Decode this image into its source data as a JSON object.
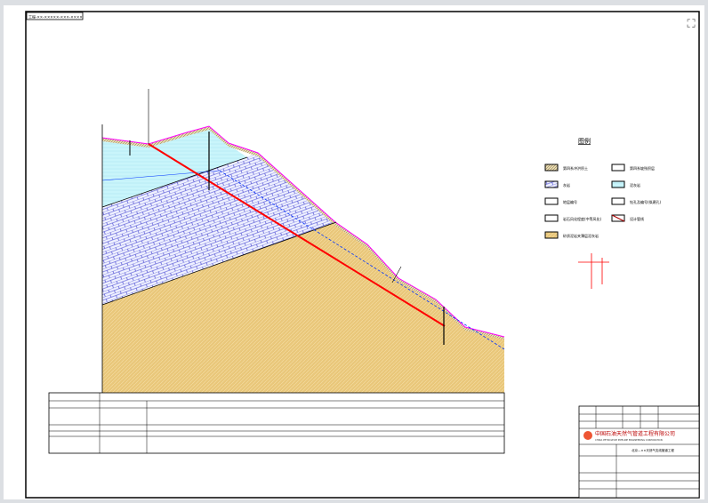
{
  "drawing_tag": "工程-××-×××××-×××-××××",
  "legend": {
    "title": "图例",
    "items": [
      {
        "label": "第四系冲洪积土",
        "swatch": "hatch-topsoil"
      },
      {
        "label": "第四系坡残积层",
        "swatch": "gravel"
      },
      {
        "label": "灰岩",
        "swatch": "limestone-blue"
      },
      {
        "label": "泥灰岩",
        "swatch": "marl-cyan"
      },
      {
        "label": "地层编号",
        "swatch": "circle-number"
      },
      {
        "label": "钻孔及编号(拟建孔)",
        "swatch": "borehole"
      },
      {
        "label": "岩石风化程度(中等风化)",
        "swatch": "weathering"
      },
      {
        "label": "设计管线",
        "swatch": "pipeline"
      },
      {
        "label": "砂质泥岩夹薄层泥灰岩",
        "swatch": "sandstone-tan"
      }
    ]
  },
  "title_block": {
    "company": "中国石油天然气管道工程有限公司",
    "company_en": "CHINA PETROLEUM PIPELINE ENGINEERING CORPORATION",
    "project": "北京—××天然气支线管道工程"
  },
  "colors": {
    "pipeline": "#ff0000",
    "surface": "#ff00ff",
    "limestone": "#3333cc",
    "marl": "#c8f4fa",
    "sandstone": "#e8c878",
    "water_line": "#0033ff"
  }
}
